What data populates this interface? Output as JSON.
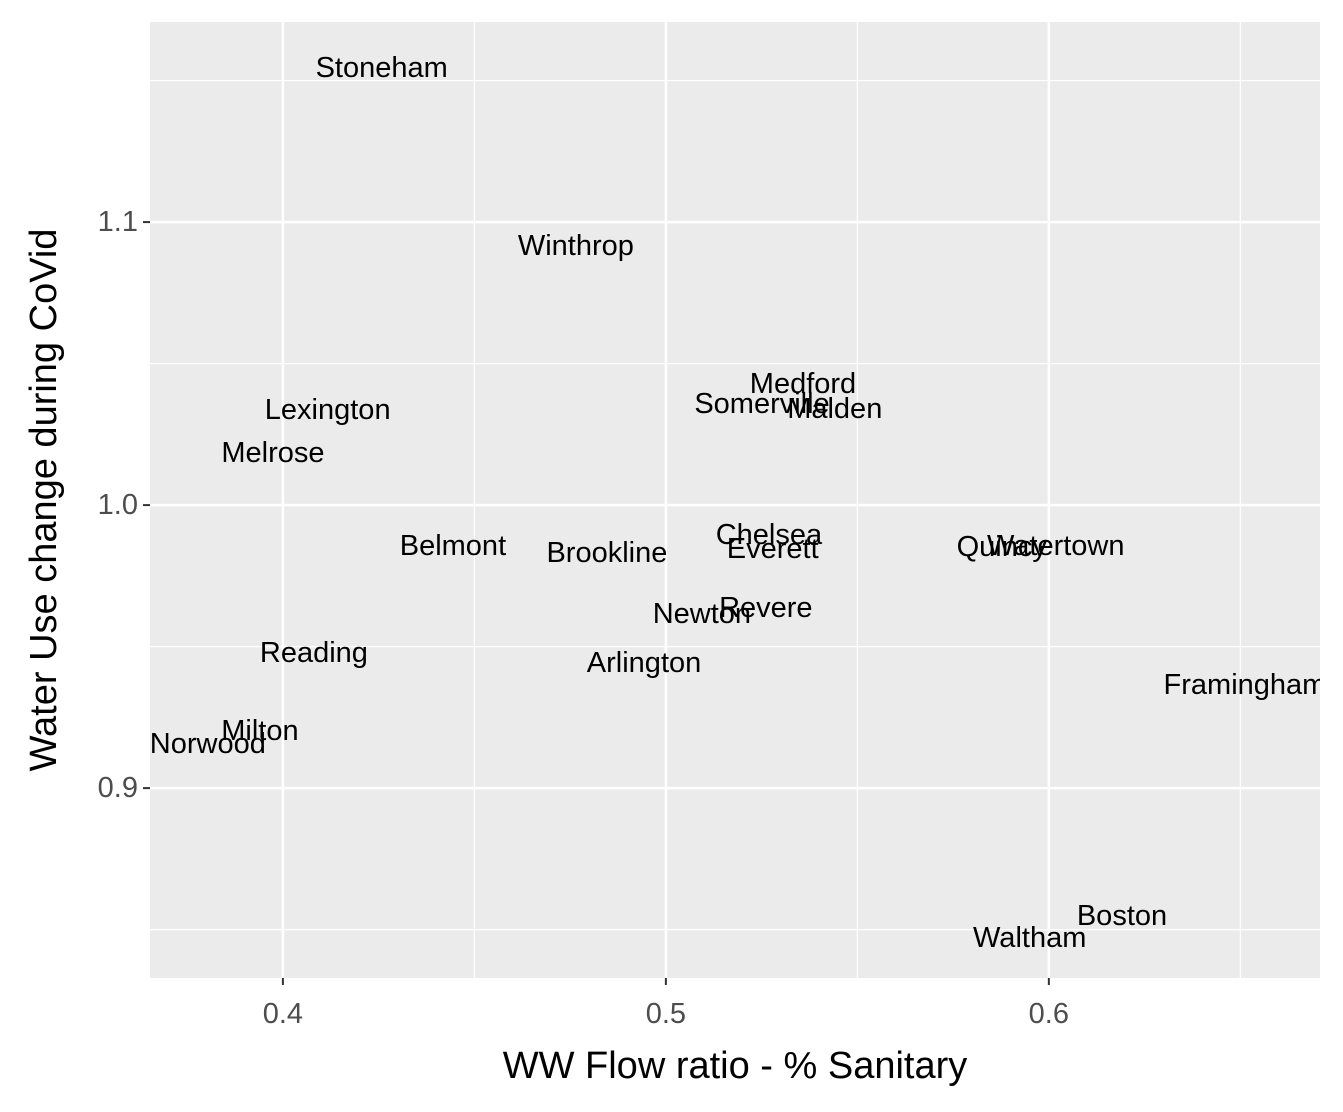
{
  "chart_data": {
    "type": "text-scatter",
    "xlabel": "WW Flow ratio - % Sanitary",
    "ylabel": "Water Use change during CoVid",
    "labels": [
      "Stoneham",
      "Winthrop",
      "Medford",
      "Somerville",
      "Malden",
      "Lexington",
      "Melrose",
      "Belmont",
      "Brookline",
      "Chelsea",
      "Everett",
      "Quincy",
      "Watertown",
      "Revere",
      "Newton",
      "Reading",
      "Arlington",
      "Framingham",
      "Milton",
      "Norwood",
      "Boston",
      "Waltham"
    ],
    "x": [
      0.4258,
      0.4765,
      0.5358,
      0.5251,
      0.5441,
      0.4117,
      0.3974,
      0.4444,
      0.4846,
      0.5269,
      0.5279,
      0.5877,
      0.6018,
      0.5261,
      0.5094,
      0.4081,
      0.4943,
      0.6512,
      0.394,
      0.3804,
      0.6191,
      0.595
    ],
    "values": [
      1.1544,
      1.0915,
      1.0428,
      1.0357,
      1.0339,
      1.0336,
      1.0184,
      0.9855,
      0.983,
      0.9894,
      0.9845,
      0.9852,
      0.9855,
      0.9636,
      0.9615,
      0.9477,
      0.9442,
      0.9364,
      0.9201,
      0.9155,
      0.8548,
      0.847
    ],
    "xlim": [
      0.3653,
      0.6708
    ],
    "ylim": [
      0.8329,
      1.1707
    ],
    "xticks": [
      0.4,
      0.5,
      0.6
    ],
    "yticks": [
      0.9,
      {
        "value": 1,
        "label": "1.0"
      },
      1.1
    ],
    "grid": true
  }
}
